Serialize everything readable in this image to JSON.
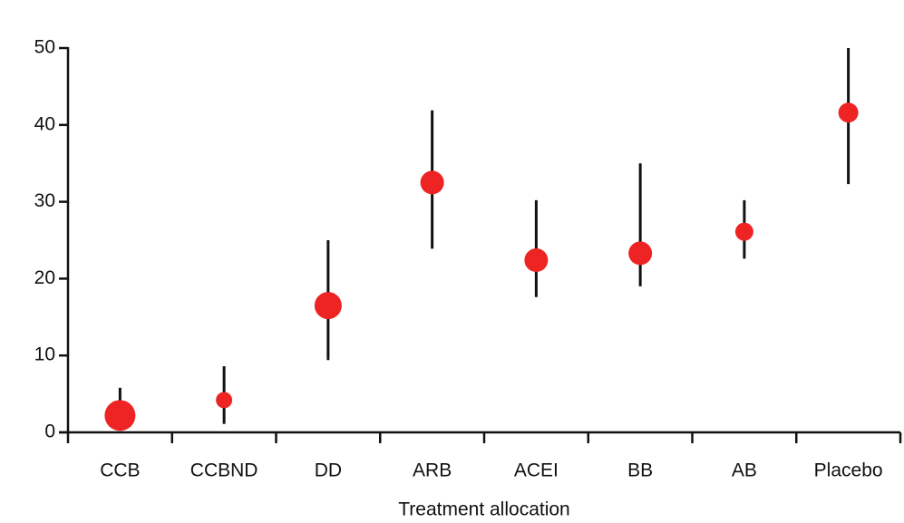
{
  "chart_data": {
    "type": "dot_errorbar",
    "x_label": "Treatment allocation",
    "categories": [
      "CCB",
      "CCBND",
      "DD",
      "ARB",
      "ACEI",
      "BB",
      "AB",
      "Placebo"
    ],
    "values": [
      2.2,
      4.2,
      16.5,
      32.5,
      22.4,
      23.3,
      26.1,
      41.6
    ],
    "lower": [
      0.5,
      1.1,
      9.4,
      23.9,
      17.6,
      19,
      22.6,
      32.3
    ],
    "upper": [
      5.8,
      8.6,
      25,
      41.9,
      30.2,
      35,
      30.2,
      50
    ],
    "sizes": [
      17,
      9,
      15,
      13,
      13,
      13,
      10,
      11
    ],
    "color": "#ee2424",
    "error_color": "#111111",
    "ylim": [
      0,
      50
    ],
    "yticks": [
      0,
      10,
      20,
      30,
      40,
      50
    ]
  }
}
